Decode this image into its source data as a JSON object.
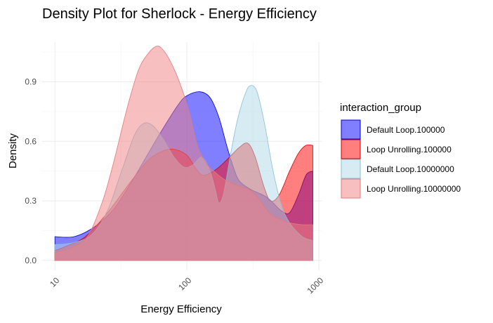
{
  "chart_data": {
    "type": "area",
    "title": "Density Plot for Sherlock - Energy Efficiency",
    "xlabel": "Energy Efficiency",
    "ylabel": "Density",
    "x_scale": "log10",
    "xlim": [
      10,
      900
    ],
    "ylim": [
      0,
      1.08
    ],
    "x_ticks": [
      10,
      100,
      1000
    ],
    "x_tick_labels": [
      "10",
      "100",
      "1000"
    ],
    "y_ticks": [
      0.0,
      0.3,
      0.6,
      0.9
    ],
    "y_tick_labels": [
      "0.0",
      "0.3",
      "0.6",
      "0.9"
    ],
    "grid": true,
    "legend": {
      "title": "interaction_group",
      "position": "right"
    },
    "series": [
      {
        "name": "Default Loop.100000",
        "fill": "#0000ff",
        "stroke": "#0000cc",
        "opacity": 0.5,
        "points": [
          [
            10,
            0.12
          ],
          [
            14,
            0.12
          ],
          [
            20,
            0.17
          ],
          [
            28,
            0.26
          ],
          [
            40,
            0.42
          ],
          [
            60,
            0.62
          ],
          [
            85,
            0.78
          ],
          [
            100,
            0.83
          ],
          [
            125,
            0.85
          ],
          [
            150,
            0.82
          ],
          [
            175,
            0.72
          ],
          [
            200,
            0.58
          ],
          [
            225,
            0.47
          ],
          [
            250,
            0.4
          ],
          [
            300,
            0.36
          ],
          [
            350,
            0.34
          ],
          [
            400,
            0.32
          ],
          [
            450,
            0.29
          ],
          [
            520,
            0.25
          ],
          [
            600,
            0.24
          ],
          [
            700,
            0.33
          ],
          [
            800,
            0.43
          ],
          [
            900,
            0.45
          ]
        ]
      },
      {
        "name": "Loop Unrolling.100000",
        "fill": "#ff0000",
        "stroke": "#cc0000",
        "opacity": 0.5,
        "points": [
          [
            10,
            0.05
          ],
          [
            12,
            0.07
          ],
          [
            17,
            0.12
          ],
          [
            25,
            0.24
          ],
          [
            35,
            0.37
          ],
          [
            50,
            0.5
          ],
          [
            65,
            0.55
          ],
          [
            80,
            0.56
          ],
          [
            100,
            0.53
          ],
          [
            115,
            0.47
          ],
          [
            130,
            0.43
          ],
          [
            150,
            0.44
          ],
          [
            175,
            0.47
          ],
          [
            210,
            0.52
          ],
          [
            250,
            0.57
          ],
          [
            290,
            0.59
          ],
          [
            330,
            0.52
          ],
          [
            380,
            0.38
          ],
          [
            430,
            0.3
          ],
          [
            500,
            0.33
          ],
          [
            600,
            0.45
          ],
          [
            700,
            0.54
          ],
          [
            800,
            0.58
          ],
          [
            900,
            0.58
          ]
        ]
      },
      {
        "name": "Default Loop.10000000",
        "fill": "#add8e6",
        "stroke": "#87bfd8",
        "opacity": 0.5,
        "points": [
          [
            10,
            0.08
          ],
          [
            14,
            0.09
          ],
          [
            19,
            0.13
          ],
          [
            25,
            0.25
          ],
          [
            32,
            0.45
          ],
          [
            40,
            0.63
          ],
          [
            47,
            0.69
          ],
          [
            55,
            0.68
          ],
          [
            65,
            0.62
          ],
          [
            80,
            0.52
          ],
          [
            95,
            0.47
          ],
          [
            110,
            0.48
          ],
          [
            130,
            0.52
          ],
          [
            150,
            0.45
          ],
          [
            165,
            0.35
          ],
          [
            175,
            0.29
          ],
          [
            190,
            0.34
          ],
          [
            215,
            0.54
          ],
          [
            240,
            0.7
          ],
          [
            270,
            0.82
          ],
          [
            300,
            0.88
          ],
          [
            340,
            0.85
          ],
          [
            390,
            0.68
          ],
          [
            450,
            0.45
          ],
          [
            520,
            0.28
          ],
          [
            600,
            0.19
          ],
          [
            750,
            0.12
          ],
          [
            900,
            0.1
          ]
        ]
      },
      {
        "name": "Loop Unrolling.10000000",
        "fill": "#f08080",
        "stroke": "#e07a7a",
        "opacity": 0.5,
        "points": [
          [
            10,
            0.04
          ],
          [
            14,
            0.07
          ],
          [
            18,
            0.13
          ],
          [
            23,
            0.3
          ],
          [
            28,
            0.5
          ],
          [
            35,
            0.76
          ],
          [
            43,
            0.96
          ],
          [
            52,
            1.05
          ],
          [
            60,
            1.08
          ],
          [
            68,
            1.05
          ],
          [
            78,
            0.98
          ],
          [
            90,
            0.88
          ],
          [
            105,
            0.74
          ],
          [
            120,
            0.58
          ],
          [
            140,
            0.49
          ],
          [
            160,
            0.45
          ],
          [
            190,
            0.41
          ],
          [
            220,
            0.39
          ],
          [
            260,
            0.37
          ],
          [
            310,
            0.35
          ],
          [
            360,
            0.3
          ],
          [
            420,
            0.24
          ],
          [
            500,
            0.21
          ],
          [
            600,
            0.19
          ],
          [
            750,
            0.18
          ],
          [
            900,
            0.18
          ]
        ]
      }
    ]
  }
}
